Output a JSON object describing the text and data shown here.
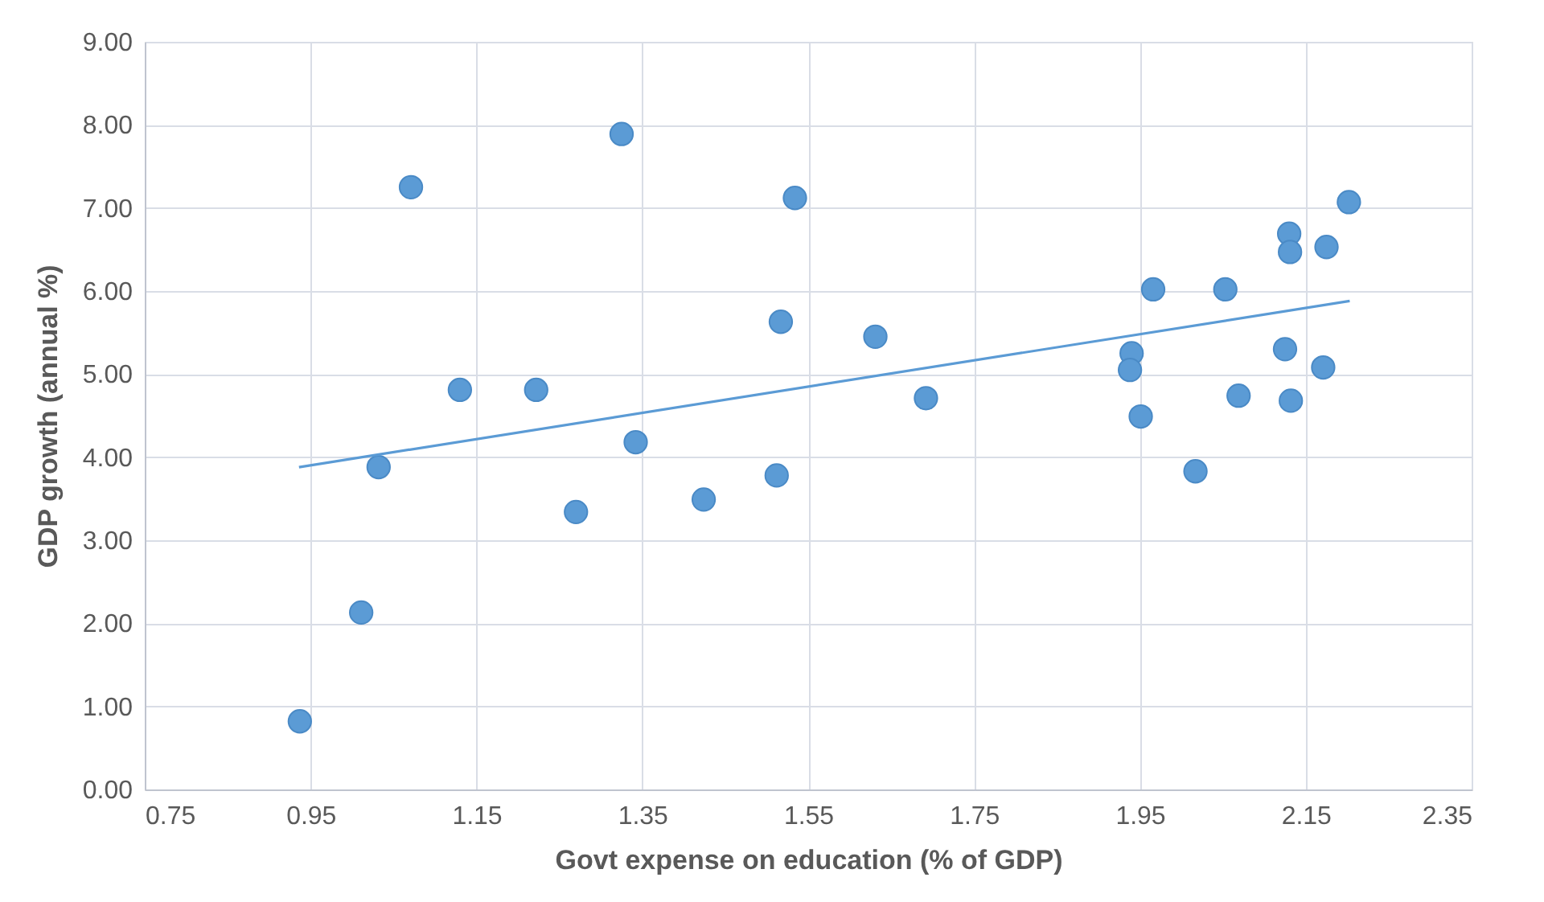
{
  "chart_data": {
    "type": "scatter",
    "xlabel": "Govt expense on education (% of GDP)",
    "ylabel": "GDP growth (annual %)",
    "xlim": [
      0.75,
      2.35
    ],
    "ylim": [
      0,
      9
    ],
    "xticks": [
      0.75,
      0.95,
      1.15,
      1.35,
      1.55,
      1.75,
      1.95,
      2.15,
      2.35
    ],
    "yticks": [
      {
        "value": 0,
        "label": "0.00"
      },
      {
        "value": 1,
        "label": "1.00"
      },
      {
        "value": 2,
        "label": "2.00"
      },
      {
        "value": 3,
        "label": "3.00"
      },
      {
        "value": 4,
        "label": "4.00"
      },
      {
        "value": 5,
        "label": "5.00"
      },
      {
        "value": 6,
        "label": "6.00"
      },
      {
        "value": 7,
        "label": "7.00"
      },
      {
        "value": 8,
        "label": "8.00"
      },
      {
        "value": 9,
        "label": "9.00"
      }
    ],
    "grid": true,
    "marker": "circle",
    "series": [
      {
        "color": "#5b9bd5",
        "x": [
          0.937,
          1.011,
          1.032,
          1.071,
          1.13,
          1.222,
          1.27,
          1.325,
          1.342,
          1.424,
          1.512,
          1.517,
          1.534,
          1.631,
          1.692,
          1.94,
          1.938,
          1.966,
          1.951,
          2.017,
          2.053,
          2.069,
          2.125,
          2.13,
          2.131,
          2.132,
          2.171,
          2.175,
          2.202
        ],
        "values": [
          0.82,
          2.13,
          3.88,
          7.25,
          4.81,
          4.81,
          3.34,
          7.89,
          4.18,
          3.49,
          3.78,
          5.63,
          7.12,
          5.45,
          4.71,
          5.25,
          5.05,
          6.02,
          4.49,
          3.83,
          6.02,
          4.74,
          5.3,
          6.69,
          6.47,
          4.68,
          5.08,
          6.53,
          7.07
        ]
      },
      {
        "type": "line",
        "marker": "none",
        "line_style": "solid",
        "color": "#5b9bd5",
        "x": [
          0.936,
          2.203
        ],
        "values": [
          3.88,
          5.88
        ]
      }
    ]
  }
}
